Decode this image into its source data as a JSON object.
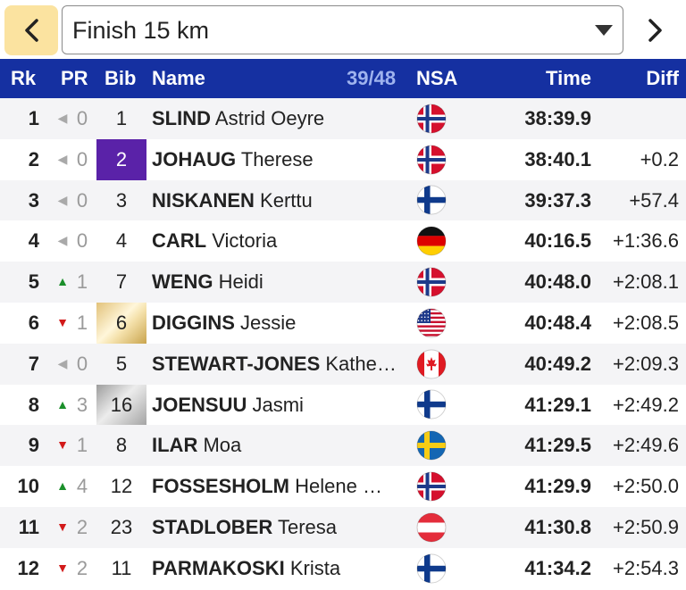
{
  "topbar": {
    "race_title": "Finish 15 km",
    "back_icon": "chevron-left-icon",
    "forward_icon": "chevron-right-icon",
    "dropdown_icon": "caret-down-icon",
    "accent": "#fbe3a0"
  },
  "header": {
    "rk": "Rk",
    "pr": "PR",
    "bib": "Bib",
    "name": "Name",
    "count": "39/48",
    "nsa": "NSA",
    "time": "Time",
    "diff": "Diff",
    "background": "#1530a1"
  },
  "rows": [
    {
      "rk": "1",
      "pr_dir": "same",
      "pr": "0",
      "bib": "1",
      "bib_style": "plain",
      "last": "SLIND",
      "first": "Astrid Oeyre",
      "nsa": "NOR",
      "time": "38:39.9",
      "diff": ""
    },
    {
      "rk": "2",
      "pr_dir": "same",
      "pr": "0",
      "bib": "2",
      "bib_style": "purple",
      "last": "JOHAUG",
      "first": "Therese",
      "nsa": "NOR",
      "time": "38:40.1",
      "diff": "+0.2"
    },
    {
      "rk": "3",
      "pr_dir": "same",
      "pr": "0",
      "bib": "3",
      "bib_style": "plain",
      "last": "NISKANEN",
      "first": "Kerttu",
      "nsa": "FIN",
      "time": "39:37.3",
      "diff": "+57.4"
    },
    {
      "rk": "4",
      "pr_dir": "same",
      "pr": "0",
      "bib": "4",
      "bib_style": "plain",
      "last": "CARL",
      "first": "Victoria",
      "nsa": "GER",
      "time": "40:16.5",
      "diff": "+1:36.6"
    },
    {
      "rk": "5",
      "pr_dir": "up",
      "pr": "1",
      "bib": "7",
      "bib_style": "plain",
      "last": "WENG",
      "first": "Heidi",
      "nsa": "NOR",
      "time": "40:48.0",
      "diff": "+2:08.1"
    },
    {
      "rk": "6",
      "pr_dir": "down",
      "pr": "1",
      "bib": "6",
      "bib_style": "yellow",
      "last": "DIGGINS",
      "first": "Jessie",
      "nsa": "USA",
      "time": "40:48.4",
      "diff": "+2:08.5"
    },
    {
      "rk": "7",
      "pr_dir": "same",
      "pr": "0",
      "bib": "5",
      "bib_style": "plain",
      "last": "STEWART-JONES",
      "first": "Kathe…",
      "nsa": "CAN",
      "time": "40:49.2",
      "diff": "+2:09.3"
    },
    {
      "rk": "8",
      "pr_dir": "up",
      "pr": "3",
      "bib": "16",
      "bib_style": "grey",
      "last": "JOENSUU",
      "first": "Jasmi",
      "nsa": "FIN",
      "time": "41:29.1",
      "diff": "+2:49.2"
    },
    {
      "rk": "9",
      "pr_dir": "down",
      "pr": "1",
      "bib": "8",
      "bib_style": "plain",
      "last": "ILAR",
      "first": "Moa",
      "nsa": "SWE",
      "time": "41:29.5",
      "diff": "+2:49.6"
    },
    {
      "rk": "10",
      "pr_dir": "up",
      "pr": "4",
      "bib": "12",
      "bib_style": "plain",
      "last": "FOSSESHOLM",
      "first": "Helene …",
      "nsa": "NOR",
      "time": "41:29.9",
      "diff": "+2:50.0"
    },
    {
      "rk": "11",
      "pr_dir": "down",
      "pr": "2",
      "bib": "23",
      "bib_style": "plain",
      "last": "STADLOBER",
      "first": "Teresa",
      "nsa": "AUT",
      "time": "41:30.8",
      "diff": "+2:50.9"
    },
    {
      "rk": "12",
      "pr_dir": "down",
      "pr": "2",
      "bib": "11",
      "bib_style": "plain",
      "last": "PARMAKOSKI",
      "first": "Krista",
      "nsa": "FIN",
      "time": "41:34.2",
      "diff": "+2:54.3"
    }
  ]
}
